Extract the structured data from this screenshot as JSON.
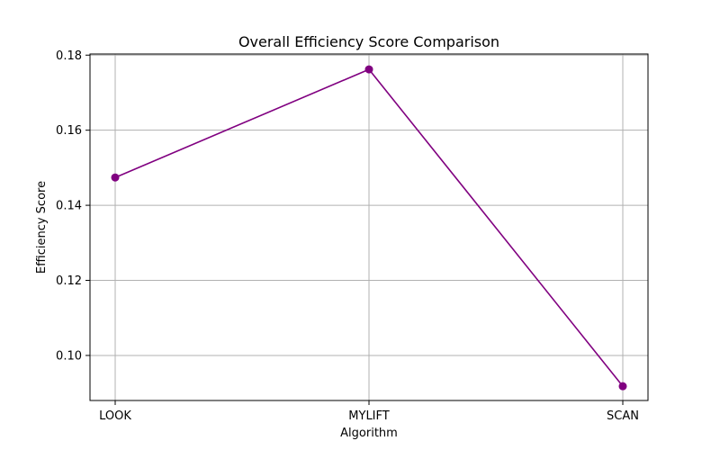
{
  "chart_data": {
    "type": "line",
    "title": "Overall Efficiency Score Comparison",
    "xlabel": "Algorithm",
    "ylabel": "Efficiency Score",
    "categories": [
      "LOOK",
      "MYLIFT",
      "SCAN"
    ],
    "series": [
      {
        "values": [
          0.1474,
          0.1762,
          0.0918
        ],
        "color": "#800080",
        "marker": "circle"
      }
    ],
    "ylim": [
      0.088,
      0.1803
    ],
    "yticks": [
      0.1,
      0.12,
      0.14,
      0.16,
      0.18
    ],
    "ytick_labels": [
      "0.10",
      "0.12",
      "0.14",
      "0.16",
      "0.18"
    ],
    "grid": true,
    "grid_color": "#b0b0b0",
    "legend": false
  }
}
